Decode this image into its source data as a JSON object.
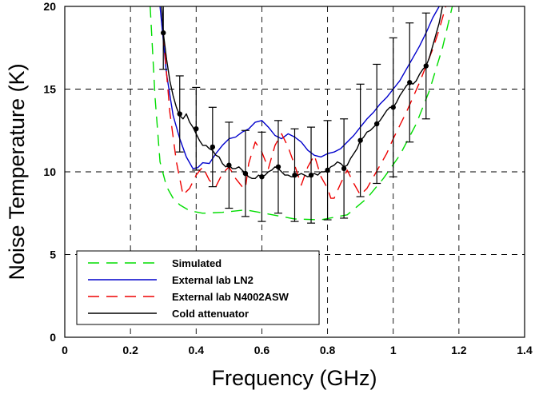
{
  "chart_data": {
    "type": "line",
    "xlabel": "Frequency (GHz)",
    "ylabel": "Noise Temperature (K)",
    "xlim": [
      0,
      1.4
    ],
    "ylim": [
      0,
      20
    ],
    "xticks": [
      0,
      0.2,
      0.4,
      0.6,
      0.8,
      1,
      1.2,
      1.4
    ],
    "yticks": [
      0,
      5,
      10,
      15,
      20
    ],
    "xtick_labels": [
      "0",
      "0.2",
      "0.4",
      "0.6",
      "0.8",
      "1",
      "1.2",
      "1.4"
    ],
    "ytick_labels": [
      "0",
      "5",
      "10",
      "15",
      "20"
    ],
    "grid": true,
    "legend_position": "bottom-left",
    "series": [
      {
        "name": "Simulated",
        "color": "#00dd00",
        "style": "dashed",
        "x": [
          0.26,
          0.275,
          0.29,
          0.31,
          0.33,
          0.35,
          0.38,
          0.42,
          0.48,
          0.55,
          0.62,
          0.7,
          0.78,
          0.86,
          0.92,
          0.97,
          1.02,
          1.07,
          1.11,
          1.15,
          1.18
        ],
        "y": [
          20,
          14.5,
          10.6,
          9.1,
          8.4,
          8.0,
          7.65,
          7.5,
          7.55,
          7.7,
          7.45,
          7.15,
          7.1,
          7.4,
          8.4,
          9.6,
          11.0,
          12.9,
          14.9,
          17.5,
          20
        ]
      },
      {
        "name": "External lab LN2",
        "color": "#0000cc",
        "style": "solid",
        "x": [
          0.29,
          0.31,
          0.33,
          0.35,
          0.37,
          0.39,
          0.405,
          0.42,
          0.44,
          0.46,
          0.48,
          0.5,
          0.52,
          0.54,
          0.56,
          0.58,
          0.6,
          0.62,
          0.64,
          0.66,
          0.68,
          0.7,
          0.72,
          0.74,
          0.76,
          0.78,
          0.8,
          0.82,
          0.84,
          0.86,
          0.88,
          0.9,
          0.92,
          0.94,
          0.96,
          0.98,
          1.0,
          1.02,
          1.04,
          1.06,
          1.08,
          1.1,
          1.12,
          1.14
        ],
        "y": [
          20,
          15.9,
          13.4,
          12.0,
          10.9,
          10.2,
          10.25,
          10.55,
          10.5,
          11.1,
          11.6,
          12.0,
          12.1,
          12.4,
          12.6,
          13.0,
          13.1,
          12.7,
          12.2,
          12.0,
          12.3,
          12.1,
          11.8,
          11.3,
          11.0,
          10.9,
          11.1,
          11.2,
          11.4,
          11.8,
          12.2,
          12.7,
          13.2,
          13.6,
          14.1,
          14.5,
          15.0,
          15.5,
          16.2,
          16.9,
          17.6,
          18.4,
          19.3,
          20
        ]
      },
      {
        "name": "External lab N4002ASW",
        "color": "#ee0000",
        "style": "dashed",
        "x": [
          0.3,
          0.32,
          0.34,
          0.36,
          0.37,
          0.38,
          0.4,
          0.42,
          0.44,
          0.46,
          0.48,
          0.5,
          0.52,
          0.54,
          0.55,
          0.56,
          0.58,
          0.6,
          0.62,
          0.64,
          0.66,
          0.68,
          0.7,
          0.72,
          0.74,
          0.76,
          0.78,
          0.8,
          0.81,
          0.82,
          0.84,
          0.86,
          0.88,
          0.9,
          0.92,
          0.94,
          0.96,
          0.98,
          1.0,
          1.02,
          1.04,
          1.06,
          1.08,
          1.1,
          1.12,
          1.14,
          1.16
        ],
        "y": [
          18.3,
          13.6,
          10.6,
          8.6,
          8.8,
          9.0,
          9.8,
          10.3,
          9.5,
          9.1,
          9.9,
          10.3,
          9.6,
          9.1,
          9.0,
          10.5,
          11.8,
          11.2,
          10.2,
          11.6,
          12.3,
          11.5,
          10.4,
          9.2,
          10.3,
          11.0,
          9.7,
          9.0,
          8.4,
          8.4,
          9.3,
          10.1,
          9.3,
          8.6,
          9.0,
          9.7,
          10.4,
          11.1,
          12.0,
          12.8,
          13.6,
          14.5,
          15.4,
          16.4,
          17.4,
          18.6,
          20
        ]
      },
      {
        "name": "Cold attenuator",
        "color": "#000000",
        "style": "solid",
        "x": [
          0.295,
          0.3,
          0.31,
          0.32,
          0.33,
          0.34,
          0.35,
          0.36,
          0.37,
          0.38,
          0.39,
          0.4,
          0.41,
          0.42,
          0.43,
          0.44,
          0.45,
          0.46,
          0.47,
          0.48,
          0.49,
          0.5,
          0.51,
          0.52,
          0.53,
          0.54,
          0.55,
          0.56,
          0.57,
          0.58,
          0.59,
          0.6,
          0.61,
          0.62,
          0.63,
          0.64,
          0.65,
          0.66,
          0.67,
          0.68,
          0.69,
          0.7,
          0.71,
          0.72,
          0.73,
          0.74,
          0.75,
          0.76,
          0.77,
          0.78,
          0.79,
          0.8,
          0.81,
          0.82,
          0.83,
          0.84,
          0.85,
          0.86,
          0.87,
          0.88,
          0.89,
          0.9,
          0.91,
          0.92,
          0.93,
          0.94,
          0.95,
          0.96,
          0.97,
          0.98,
          0.99,
          1.0,
          1.01,
          1.02,
          1.03,
          1.04,
          1.05,
          1.06,
          1.07,
          1.08,
          1.09,
          1.1,
          1.11,
          1.12,
          1.13,
          1.14,
          1.15
        ],
        "y": [
          20,
          18.4,
          16.8,
          15.5,
          14.6,
          13.9,
          13.4,
          13.2,
          13.5,
          13.0,
          12.7,
          12.3,
          11.9,
          11.6,
          11.6,
          11.4,
          11.3,
          11.0,
          10.9,
          10.5,
          10.3,
          10.4,
          10.2,
          10.2,
          10.3,
          10.1,
          9.9,
          9.7,
          9.6,
          9.6,
          9.8,
          9.7,
          9.8,
          10.0,
          10.1,
          10.3,
          10.2,
          10.0,
          9.8,
          9.8,
          9.7,
          9.7,
          9.8,
          9.9,
          9.8,
          9.7,
          9.8,
          9.9,
          9.8,
          10.0,
          10.0,
          10.1,
          10.3,
          10.4,
          10.6,
          10.5,
          10.3,
          10.4,
          10.8,
          11.1,
          11.4,
          11.9,
          12.1,
          12.4,
          12.5,
          12.7,
          12.9,
          13.1,
          13.4,
          13.7,
          13.9,
          13.9,
          14.2,
          14.6,
          14.9,
          15.2,
          15.4,
          15.3,
          15.5,
          15.9,
          16.2,
          16.4,
          16.9,
          17.6,
          18.3,
          19.0,
          20
        ]
      }
    ],
    "error_bars": {
      "color": "#000000",
      "x": [
        0.3,
        0.35,
        0.4,
        0.45,
        0.5,
        0.55,
        0.6,
        0.65,
        0.7,
        0.75,
        0.8,
        0.85,
        0.9,
        0.95,
        1.0,
        1.05,
        1.1
      ],
      "y": [
        18.4,
        13.5,
        12.6,
        11.5,
        10.4,
        9.9,
        9.7,
        10.3,
        9.8,
        9.8,
        10.1,
        10.2,
        11.9,
        12.9,
        13.9,
        15.4,
        16.4
      ],
      "err": [
        2.2,
        2.3,
        2.5,
        2.4,
        2.6,
        2.6,
        2.7,
        2.8,
        2.8,
        2.9,
        3.0,
        3.0,
        3.4,
        3.6,
        4.2,
        3.6,
        3.2
      ]
    }
  }
}
